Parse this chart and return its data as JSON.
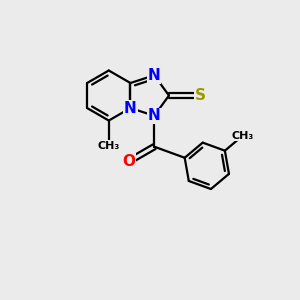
{
  "background_color": "#ebebeb",
  "bond_color": "#000000",
  "bond_width": 1.6,
  "atom_colors": {
    "N": "#0000ff",
    "S": "#999900",
    "O": "#ff0000",
    "C": "#000000"
  },
  "font_size_atom": 11
}
